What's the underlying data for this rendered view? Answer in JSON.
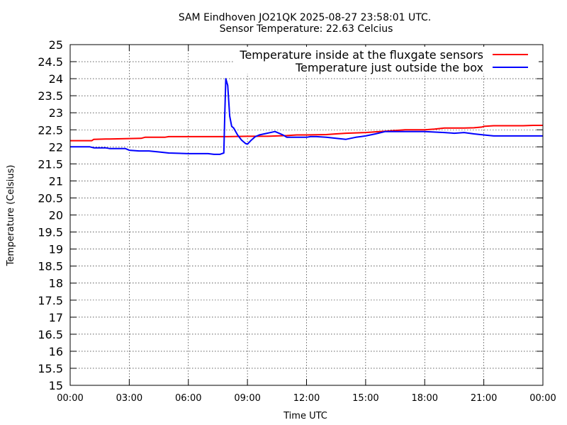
{
  "chart_data": {
    "type": "line",
    "title_line1": "SAM Eindhoven JO21QK 2025-08-27 23:58:01 UTC.",
    "title_line2": "Sensor Temperature: 22.63 Celcius",
    "xlabel": "Time UTC",
    "ylabel": "Temperature (Celsius)",
    "xlim": [
      0,
      24
    ],
    "ylim": [
      15,
      25
    ],
    "x_ticks": [
      {
        "value": 0,
        "label": "00:00"
      },
      {
        "value": 3,
        "label": "03:00"
      },
      {
        "value": 6,
        "label": "06:00"
      },
      {
        "value": 9,
        "label": "09:00"
      },
      {
        "value": 12,
        "label": "12:00"
      },
      {
        "value": 15,
        "label": "15:00"
      },
      {
        "value": 18,
        "label": "18:00"
      },
      {
        "value": 21,
        "label": "21:00"
      },
      {
        "value": 24,
        "label": "00:00"
      }
    ],
    "y_ticks": [
      {
        "value": 15,
        "label": "15"
      },
      {
        "value": 15.5,
        "label": "15.5"
      },
      {
        "value": 16,
        "label": "16"
      },
      {
        "value": 16.5,
        "label": "16.5"
      },
      {
        "value": 17,
        "label": "17"
      },
      {
        "value": 17.5,
        "label": "17.5"
      },
      {
        "value": 18,
        "label": "18"
      },
      {
        "value": 18.5,
        "label": "18.5"
      },
      {
        "value": 19,
        "label": "19"
      },
      {
        "value": 19.5,
        "label": "19.5"
      },
      {
        "value": 20,
        "label": "20"
      },
      {
        "value": 20.5,
        "label": "20.5"
      },
      {
        "value": 21,
        "label": "21"
      },
      {
        "value": 21.5,
        "label": "21.5"
      },
      {
        "value": 22,
        "label": "22"
      },
      {
        "value": 22.5,
        "label": "22.5"
      },
      {
        "value": 23,
        "label": "23"
      },
      {
        "value": 23.5,
        "label": "23.5"
      },
      {
        "value": 24,
        "label": "24"
      },
      {
        "value": 24.5,
        "label": "24.5"
      },
      {
        "value": 25,
        "label": "25"
      }
    ],
    "grid": true,
    "legend_placement": "top-right",
    "series": [
      {
        "name": "Temperature inside at the fluxgate sensors",
        "color": "#ff0000",
        "x": [
          0,
          1.1,
          1.2,
          1.8,
          2.0,
          3.6,
          3.8,
          4.3,
          4.8,
          5.0,
          5.5,
          7.0,
          8.0,
          9.0,
          10.0,
          11.0,
          11.5,
          12.0,
          13.0,
          13.5,
          14.0,
          15.0,
          15.5,
          16.0,
          16.5,
          17.0,
          18.0,
          18.5,
          19.0,
          19.5,
          20.0,
          20.5,
          20.9,
          21.0,
          21.5,
          22.0,
          23.0,
          23.5,
          24.0
        ],
        "values": [
          22.18,
          22.18,
          22.22,
          22.23,
          22.23,
          22.25,
          22.28,
          22.28,
          22.28,
          22.3,
          22.3,
          22.3,
          22.3,
          22.31,
          22.31,
          22.33,
          22.35,
          22.35,
          22.36,
          22.38,
          22.4,
          22.42,
          22.44,
          22.46,
          22.48,
          22.5,
          22.5,
          22.52,
          22.55,
          22.55,
          22.55,
          22.56,
          22.58,
          22.6,
          22.62,
          22.62,
          22.62,
          22.63,
          22.63
        ]
      },
      {
        "name": "Temperature just outside the box",
        "color": "#0000ff",
        "x": [
          0,
          1.0,
          1.2,
          1.8,
          2.0,
          2.8,
          3.0,
          3.5,
          4.0,
          4.5,
          5.0,
          6.0,
          7.0,
          7.3,
          7.6,
          7.7,
          7.8,
          7.85,
          7.9,
          8.0,
          8.1,
          8.2,
          8.3,
          8.5,
          8.7,
          8.9,
          9.0,
          9.2,
          9.4,
          9.6,
          10.0,
          10.4,
          10.6,
          10.8,
          11.0,
          11.5,
          12.0,
          12.2,
          12.5,
          13.0,
          13.5,
          14.0,
          14.5,
          15.0,
          15.5,
          16.0,
          16.5,
          17.0,
          18.0,
          19.0,
          19.5,
          20.0,
          20.5,
          21.0,
          21.5,
          22.0,
          23.0,
          24.0
        ],
        "values": [
          22.0,
          22.0,
          21.97,
          21.97,
          21.95,
          21.95,
          21.9,
          21.88,
          21.88,
          21.85,
          21.82,
          21.8,
          21.8,
          21.78,
          21.78,
          21.8,
          21.82,
          23.0,
          24.0,
          23.8,
          22.9,
          22.6,
          22.55,
          22.35,
          22.2,
          22.1,
          22.08,
          22.2,
          22.3,
          22.35,
          22.4,
          22.45,
          22.4,
          22.35,
          22.28,
          22.28,
          22.28,
          22.3,
          22.3,
          22.28,
          22.25,
          22.22,
          22.28,
          22.32,
          22.38,
          22.45,
          22.45,
          22.45,
          22.45,
          22.42,
          22.4,
          22.42,
          22.38,
          22.35,
          22.32,
          22.32,
          22.32,
          22.32
        ]
      }
    ]
  }
}
